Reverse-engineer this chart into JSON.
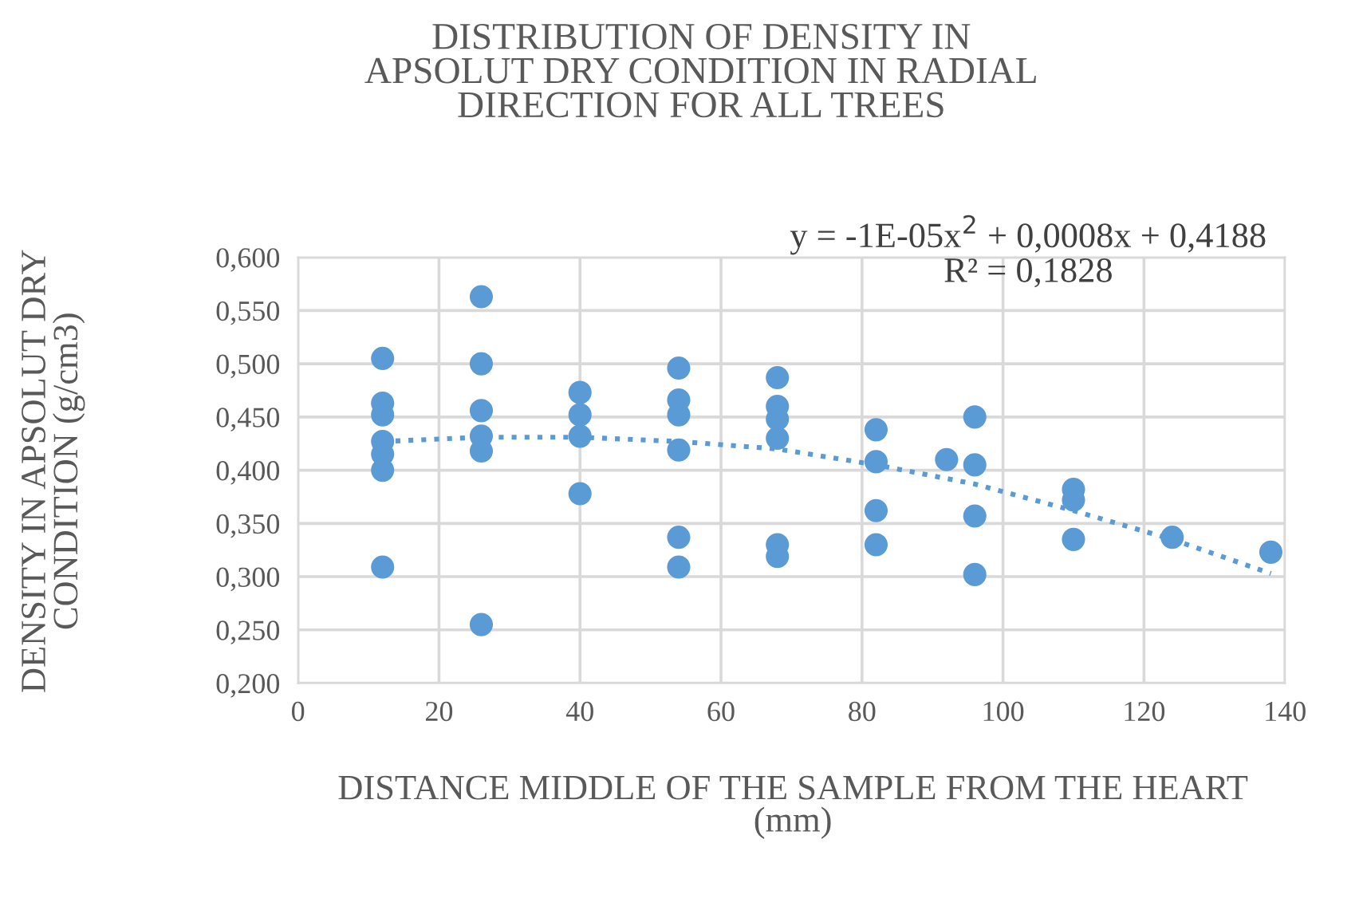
{
  "chart_data": {
    "type": "scatter",
    "title": "DISTRIBUTION OF DENSITY IN APSOLUT DRY CONDITION IN RADIAL DIRECTION FOR ALL TREES",
    "xlabel": "DISTANCE MIDDLE OF THE SAMPLE FROM THE HEART (mm)",
    "ylabel": "DENSITY IN APSOLUT DRY CONDITION (g/cm3)",
    "annotations": [
      "y = -1E-05x$^{2}$ + 0,0008x + 0,4188",
      "R² = 0,1828"
    ],
    "xlim": [
      0,
      140
    ],
    "xticks": [
      0,
      20,
      40,
      60,
      80,
      100,
      120,
      140
    ],
    "ylim": [
      0.2,
      0.6
    ],
    "yticks": [
      {
        "value": 0.2,
        "label": "0,200"
      },
      {
        "value": 0.25,
        "label": "0,250"
      },
      {
        "value": 0.3,
        "label": "0,300"
      },
      {
        "value": 0.35,
        "label": "0,350"
      },
      {
        "value": 0.4,
        "label": "0,400"
      },
      {
        "value": 0.45,
        "label": "0,450"
      },
      {
        "value": 0.5,
        "label": "0,500"
      },
      {
        "value": 0.55,
        "label": "0,550"
      },
      {
        "value": 0.6,
        "label": "0,600"
      }
    ],
    "grid": true,
    "marker": "circle",
    "series": [
      {
        "color": "#5b9bd5",
        "x": [
          12,
          12,
          12,
          12,
          12,
          12,
          12,
          26,
          26,
          26,
          26,
          26,
          26,
          40,
          40,
          40,
          40,
          54,
          54,
          54,
          54,
          54,
          54,
          68,
          68,
          68,
          68,
          68,
          68,
          82,
          82,
          82,
          82,
          92,
          96,
          96,
          96,
          96,
          110,
          110,
          110,
          124,
          138
        ],
        "values": [
          0.505,
          0.463,
          0.452,
          0.427,
          0.415,
          0.4,
          0.309,
          0.563,
          0.5,
          0.456,
          0.432,
          0.418,
          0.255,
          0.473,
          0.452,
          0.432,
          0.378,
          0.496,
          0.466,
          0.452,
          0.419,
          0.337,
          0.309,
          0.487,
          0.46,
          0.448,
          0.43,
          0.33,
          0.319,
          0.438,
          0.408,
          0.362,
          0.33,
          0.41,
          0.45,
          0.405,
          0.357,
          0.302,
          0.382,
          0.372,
          0.335,
          0.337,
          0.323
        ]
      },
      {
        "type": "line",
        "color": "#5b9bd5",
        "line_style": "dotted",
        "marker": "none",
        "x": [
          12,
          26,
          40,
          54,
          68,
          82,
          96,
          110,
          124,
          138
        ],
        "values": [
          0.427,
          0.431,
          0.431,
          0.427,
          0.42,
          0.405,
          0.387,
          0.362,
          0.335,
          0.303
        ]
      }
    ]
  }
}
